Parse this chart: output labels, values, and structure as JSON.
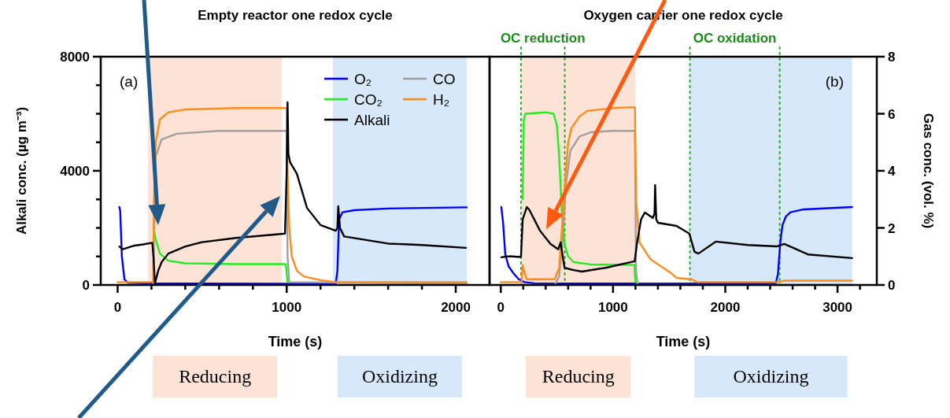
{
  "chart_data": [
    {
      "type": "line",
      "title": "Empty reactor one redox cycle",
      "xlabel": "Time (s)",
      "ylabel": "Alkali conc. (µg m⁻³)",
      "xlim": [
        -100,
        2200
      ],
      "xticks": [
        0,
        {
          "value": 200,
          "label": null
        },
        {
          "value": 400,
          "label": null
        },
        {
          "value": 600,
          "label": null
        },
        {
          "value": 800,
          "label": null
        },
        1000,
        {
          "value": 1200,
          "label": null
        },
        {
          "value": 1400,
          "label": null
        },
        {
          "value": 1600,
          "label": null
        },
        {
          "value": 1800,
          "label": null
        },
        2000
      ],
      "ylim": [
        0,
        8000
      ],
      "yticks": [
        0,
        {
          "value": 1000,
          "label": null
        },
        {
          "value": 2000,
          "label": null
        },
        {
          "value": 3000,
          "label": null
        },
        4000,
        {
          "value": 5000,
          "label": null
        },
        {
          "value": 6000,
          "label": null
        },
        {
          "value": 7000,
          "label": null
        },
        8000
      ],
      "y2lim": [
        0,
        8
      ],
      "legend": "top right",
      "annotations": [
        "(a)",
        "Reducing",
        "Oxidizing"
      ],
      "bands": [
        {
          "axis": "x",
          "from": 180,
          "to": 972,
          "color": "#fce3d6"
        },
        {
          "axis": "x",
          "from": 1273,
          "to": 2065,
          "color": "#d6e8fa"
        }
      ],
      "series": [
        {
          "name": "O₂",
          "color": "#0000ff",
          "axis": "y2",
          "x": [
            10,
            15,
            25,
            40,
            60,
            200,
            1000,
            1290,
            1300,
            1310,
            1330,
            1400,
            1600,
            2065
          ],
          "values": [
            2.73,
            2.6,
            1.0,
            0.2,
            0.08,
            0.05,
            0.04,
            0.04,
            0.5,
            2.3,
            2.55,
            2.62,
            2.68,
            2.72
          ]
        },
        {
          "name": "CO",
          "color": "#a0a0a0",
          "axis": "y2",
          "x": [
            0,
            212,
            218,
            225,
            260,
            350,
            600,
            1000,
            1005,
            1015,
            2065
          ],
          "values": [
            0,
            0,
            3.5,
            4.5,
            5.1,
            5.3,
            5.4,
            5.4,
            1,
            0.1,
            0.05
          ]
        },
        {
          "name": "CO₂",
          "color": "#22ee22",
          "axis": "y2",
          "x": [
            215,
            225,
            250,
            300,
            400,
            700,
            995,
            1005
          ],
          "values": [
            1.9,
            1.6,
            1.1,
            0.85,
            0.76,
            0.73,
            0.73,
            0.1
          ]
        },
        {
          "name": "H₂",
          "color": "#ff8c1a",
          "axis": "y2",
          "x": [
            0,
            210,
            215,
            225,
            250,
            300,
            400,
            700,
            1000,
            1005,
            1015,
            1030,
            1060,
            1100,
            1200,
            1290,
            2065
          ],
          "values": [
            0.1,
            0.1,
            3,
            5.0,
            5.8,
            6.05,
            6.15,
            6.2,
            6.2,
            4,
            2,
            1,
            0.5,
            0.3,
            0.17,
            0.1,
            0.1
          ]
        },
        {
          "name": "Alkali",
          "color": "#000000",
          "axis": "y",
          "x": [
            10,
            30,
            100,
            150,
            205,
            212,
            220,
            240,
            260,
            300,
            400,
            500,
            700,
            900,
            990,
            1000,
            1005,
            1010,
            1020,
            1060,
            1120,
            1200,
            1290,
            1300,
            1305,
            1315,
            1340,
            1600,
            1800,
            2060
          ],
          "values": [
            1350,
            1250,
            1380,
            1420,
            1480,
            1000,
            50,
            500,
            800,
            1100,
            1350,
            1500,
            1650,
            1750,
            1800,
            4000,
            6400,
            4600,
            4300,
            3900,
            2700,
            2100,
            1900,
            2000,
            2760,
            2000,
            1700,
            1450,
            1400,
            1300
          ]
        }
      ]
    },
    {
      "type": "line",
      "title": "Oxygen carrier one redox cycle",
      "xlabel": "Time (s)",
      "y2label": "Gas conc. (vol. %)",
      "xlim": [
        -100,
        3350
      ],
      "xticks": [
        0,
        {
          "value": 200,
          "label": null
        },
        {
          "value": 400,
          "label": null
        },
        {
          "value": 600,
          "label": null
        },
        {
          "value": 800,
          "label": null
        },
        1000,
        {
          "value": 1200,
          "label": null
        },
        {
          "value": 1400,
          "label": null
        },
        {
          "value": 1600,
          "label": null
        },
        {
          "value": 1800,
          "label": null
        },
        2000,
        {
          "value": 2200,
          "label": null
        },
        {
          "value": 2400,
          "label": null
        },
        {
          "value": 2600,
          "label": null
        },
        {
          "value": 2800,
          "label": null
        },
        3000,
        {
          "value": 3200,
          "label": null
        }
      ],
      "ylim": [
        0,
        8000
      ],
      "y2lim": [
        0,
        8
      ],
      "y2ticks": [
        0,
        2,
        4,
        6,
        8
      ],
      "annotations": [
        "(b)",
        "Reducing",
        "Oxidizing",
        {
          "text": "OC reduction",
          "x": 375,
          "y": 8000
        },
        {
          "text": "OC oxidation",
          "x": 2085,
          "y": 8000
        }
      ],
      "bands": [
        {
          "axis": "x",
          "from": 182,
          "to": 1200,
          "color": "#fce3d6"
        },
        {
          "axis": "x",
          "from": 1684,
          "to": 3130,
          "color": "#d6e8fa"
        }
      ],
      "ref_lines": [
        {
          "axis": "x",
          "value": 180,
          "color": "#22aa22",
          "line_style": "dotted"
        },
        {
          "axis": "x",
          "value": 570,
          "color": "#22aa22",
          "line_style": "dotted"
        },
        {
          "axis": "x",
          "value": 1685,
          "color": "#22aa22",
          "line_style": "dotted"
        },
        {
          "axis": "x",
          "value": 2485,
          "color": "#22aa22",
          "line_style": "dotted"
        }
      ],
      "series": [
        {
          "color": "#0000ff",
          "axis": "y2",
          "x": [
            5,
            20,
            40,
            70,
            115,
            160,
            210,
            300,
            1000,
            2450,
            2470,
            2490,
            2510,
            2540,
            2580,
            2700,
            3130
          ],
          "values": [
            2.73,
            2.2,
            1.07,
            0.65,
            0.4,
            0.2,
            0.1,
            0.06,
            0.05,
            0.05,
            0.4,
            1.5,
            2.1,
            2.4,
            2.55,
            2.65,
            2.73
          ]
        },
        {
          "color": "#a0a0a0",
          "axis": "y2",
          "x": [
            0,
            480,
            520,
            550,
            580,
            620,
            700,
            800,
            1000,
            1195,
            1205,
            1220,
            3130
          ],
          "values": [
            0,
            0,
            0.3,
            1.5,
            3.5,
            4.7,
            5.2,
            5.35,
            5.4,
            5.4,
            0.5,
            0,
            0
          ]
        },
        {
          "color": "#22ee22",
          "axis": "y2",
          "x": [
            195,
            205,
            220,
            400,
            470,
            500,
            520,
            545,
            570,
            600,
            650,
            800,
            1190,
            1200
          ],
          "values": [
            3,
            5.8,
            6.0,
            6.05,
            6.0,
            5.6,
            4.5,
            2.5,
            1.4,
            1.0,
            0.8,
            0.72,
            0.7,
            0.1
          ]
        },
        {
          "color": "#ff8c1a",
          "axis": "y2",
          "x": [
            0,
            185,
            195,
            205,
            230,
            480,
            520,
            545,
            570,
            600,
            630,
            700,
            770,
            1000,
            1195,
            1205,
            1235,
            1333,
            1516,
            1565,
            1700,
            1750,
            2480,
            2520,
            3130
          ],
          "values": [
            0.1,
            0.1,
            0.7,
            0.5,
            0.2,
            0.2,
            0.6,
            2,
            3.5,
            5.0,
            5.5,
            5.9,
            6.1,
            6.2,
            6.23,
            3,
            1.5,
            0.9,
            0.42,
            0.25,
            0.2,
            0.1,
            0.1,
            0.15,
            0.15
          ]
        },
        {
          "color": "#000000",
          "axis": "y",
          "x": [
            5,
            50,
            100,
            180,
            195,
            232,
            253,
            350,
            442,
            512,
            533,
            568,
            650,
            723,
            933,
            1193,
            1215,
            1250,
            1284,
            1354,
            1370,
            1375,
            1385,
            1400,
            1565,
            1680,
            1726,
            1761,
            1915,
            2200,
            2456,
            2526,
            2737,
            3130
          ],
          "values": [
            970,
            1000,
            1000,
            980,
            2300,
            2730,
            2640,
            1900,
            1440,
            1250,
            1490,
            600,
            520,
            470,
            600,
            830,
            1500,
            2300,
            2540,
            2350,
            2500,
            3500,
            2300,
            2180,
            2070,
            1800,
            1160,
            1100,
            1520,
            1400,
            1350,
            1440,
            1070,
            940
          ]
        }
      ]
    }
  ]
}
